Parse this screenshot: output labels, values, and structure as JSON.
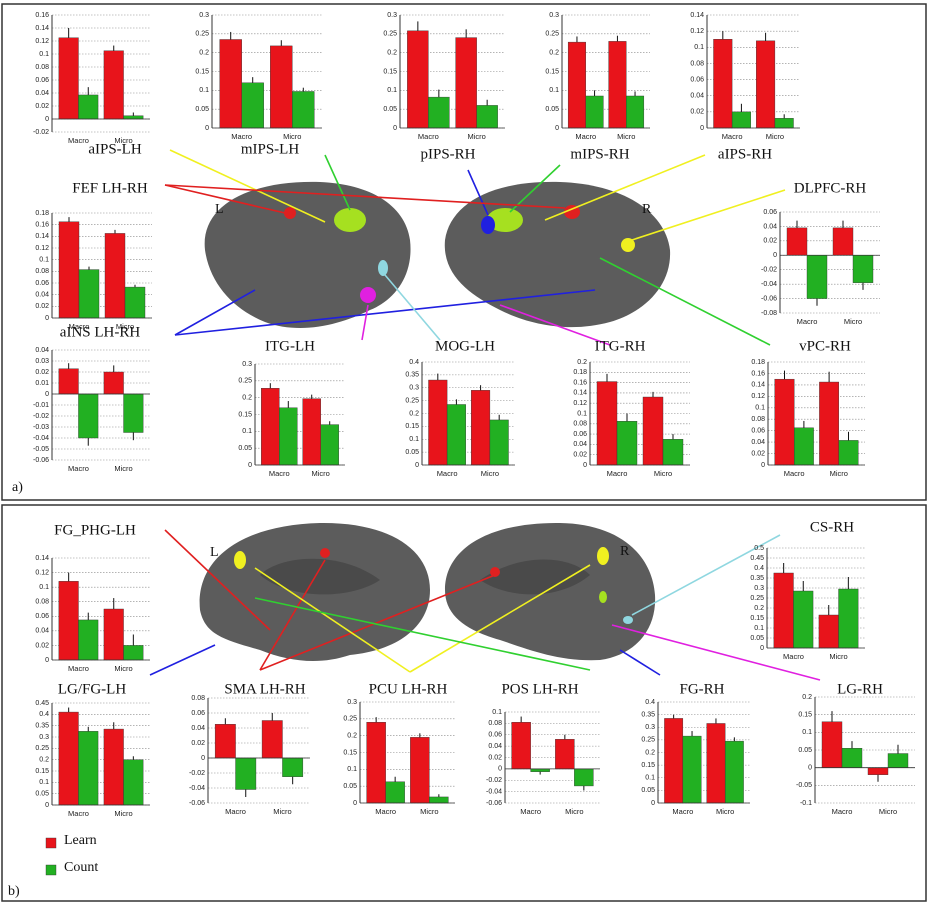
{
  "panels": {
    "a": "a)",
    "b": "b)"
  },
  "annotations": [
    "L",
    "R",
    "L",
    "R"
  ],
  "legend": [
    {
      "name": "Learn",
      "color": "#e8141b"
    },
    {
      "name": "Count",
      "color": "#22b022"
    }
  ],
  "chart_data": [
    {
      "type": "bar",
      "title": "aIPS-LH",
      "categories": [
        "Macro",
        "Micro"
      ],
      "series": [
        {
          "values": [
            0.125,
            0.105
          ],
          "errors": [
            0.015,
            0.008
          ]
        },
        {
          "values": [
            0.037,
            0.005
          ],
          "errors": [
            0.012,
            0.005
          ]
        }
      ],
      "ylim": [
        -0.02,
        0.16
      ],
      "yticks": [
        -0.02,
        0,
        0.02,
        0.04,
        0.06,
        0.08,
        0.1,
        0.12,
        0.14,
        0.16
      ],
      "grid": true
    },
    {
      "type": "bar",
      "title": "mIPS-LH",
      "categories": [
        "Macro",
        "Micro"
      ],
      "series": [
        {
          "values": [
            0.235,
            0.218
          ],
          "errors": [
            0.02,
            0.015
          ]
        },
        {
          "values": [
            0.12,
            0.097
          ],
          "errors": [
            0.015,
            0.01
          ]
        }
      ],
      "ylim": [
        0,
        0.3
      ],
      "yticks": [
        0,
        0.05,
        0.1,
        0.15,
        0.2,
        0.25,
        0.3
      ],
      "grid": true
    },
    {
      "type": "bar",
      "title": "pIPS-RH",
      "categories": [
        "Macro",
        "Micro"
      ],
      "series": [
        {
          "values": [
            0.258,
            0.24
          ],
          "errors": [
            0.025,
            0.022
          ]
        },
        {
          "values": [
            0.082,
            0.06
          ],
          "errors": [
            0.02,
            0.015
          ]
        }
      ],
      "ylim": [
        0,
        0.3
      ],
      "yticks": [
        0,
        0.05,
        0.1,
        0.15,
        0.2,
        0.25,
        0.3
      ],
      "grid": true
    },
    {
      "type": "bar",
      "title": "mIPS-RH",
      "categories": [
        "Macro",
        "Micro"
      ],
      "series": [
        {
          "values": [
            0.228,
            0.23
          ],
          "errors": [
            0.015,
            0.015
          ]
        },
        {
          "values": [
            0.085,
            0.085
          ],
          "errors": [
            0.015,
            0.012
          ]
        }
      ],
      "ylim": [
        0,
        0.3
      ],
      "yticks": [
        0,
        0.05,
        0.1,
        0.15,
        0.2,
        0.25,
        0.3
      ],
      "grid": true
    },
    {
      "type": "bar",
      "title": "aIPS-RH",
      "categories": [
        "Macro",
        "Micro"
      ],
      "series": [
        {
          "values": [
            0.11,
            0.108
          ],
          "errors": [
            0.01,
            0.01
          ]
        },
        {
          "values": [
            0.02,
            0.012
          ],
          "errors": [
            0.01,
            0.005
          ]
        }
      ],
      "ylim": [
        0,
        0.14
      ],
      "yticks": [
        0,
        0.02,
        0.04,
        0.06,
        0.08,
        0.1,
        0.12,
        0.14
      ],
      "grid": true
    },
    {
      "type": "bar",
      "title": "FEF LH-RH",
      "categories": [
        "Macro",
        "Micro"
      ],
      "series": [
        {
          "values": [
            0.165,
            0.145
          ],
          "errors": [
            0.008,
            0.006
          ]
        },
        {
          "values": [
            0.083,
            0.053
          ],
          "errors": [
            0.005,
            0.004
          ]
        }
      ],
      "ylim": [
        0,
        0.18
      ],
      "yticks": [
        0,
        0.02,
        0.04,
        0.06,
        0.08,
        0.1,
        0.12,
        0.14,
        0.16,
        0.18
      ],
      "grid": true
    },
    {
      "type": "bar",
      "title": "DLPFC-RH",
      "categories": [
        "Macro",
        "Micro"
      ],
      "series": [
        {
          "values": [
            0.038,
            0.038
          ],
          "errors": [
            0.01,
            0.01
          ]
        },
        {
          "values": [
            -0.06,
            -0.038
          ],
          "errors": [
            0.01,
            0.01
          ]
        }
      ],
      "ylim": [
        -0.08,
        0.06
      ],
      "yticks": [
        -0.08,
        -0.06,
        -0.04,
        -0.02,
        0,
        0.02,
        0.04,
        0.06
      ],
      "grid": true
    },
    {
      "type": "bar",
      "title": "aINS LH-RH",
      "categories": [
        "Macro",
        "Micro"
      ],
      "series": [
        {
          "values": [
            0.023,
            0.02
          ],
          "errors": [
            0.005,
            0.006
          ]
        },
        {
          "values": [
            -0.04,
            -0.035
          ],
          "errors": [
            0.007,
            0.007
          ]
        }
      ],
      "ylim": [
        -0.06,
        0.04
      ],
      "yticks": [
        -0.06,
        -0.05,
        -0.04,
        -0.03,
        -0.02,
        -0.01,
        0,
        0.01,
        0.02,
        0.03,
        0.04
      ],
      "grid": true
    },
    {
      "type": "bar",
      "title": "ITG-LH",
      "categories": [
        "Macro",
        "Micro"
      ],
      "series": [
        {
          "values": [
            0.228,
            0.197
          ],
          "errors": [
            0.015,
            0.012
          ]
        },
        {
          "values": [
            0.17,
            0.12
          ],
          "errors": [
            0.02,
            0.01
          ]
        }
      ],
      "ylim": [
        0,
        0.3
      ],
      "yticks": [
        0,
        0.05,
        0.1,
        0.15,
        0.2,
        0.25,
        0.3
      ],
      "grid": true
    },
    {
      "type": "bar",
      "title": "MOG-LH",
      "categories": [
        "Macro",
        "Micro"
      ],
      "series": [
        {
          "values": [
            0.33,
            0.29
          ],
          "errors": [
            0.025,
            0.02
          ]
        },
        {
          "values": [
            0.235,
            0.175
          ],
          "errors": [
            0.02,
            0.02
          ]
        }
      ],
      "ylim": [
        0,
        0.4
      ],
      "yticks": [
        0,
        0.05,
        0.1,
        0.15,
        0.2,
        0.25,
        0.3,
        0.35,
        0.4
      ],
      "grid": true
    },
    {
      "type": "bar",
      "title": "ITG-RH",
      "categories": [
        "Macro",
        "Micro"
      ],
      "series": [
        {
          "values": [
            0.162,
            0.132
          ],
          "errors": [
            0.015,
            0.01
          ]
        },
        {
          "values": [
            0.085,
            0.05
          ],
          "errors": [
            0.015,
            0.01
          ]
        }
      ],
      "ylim": [
        0,
        0.2
      ],
      "yticks": [
        0,
        0.02,
        0.04,
        0.06,
        0.08,
        0.1,
        0.12,
        0.14,
        0.16,
        0.18,
        0.2
      ],
      "grid": true
    },
    {
      "type": "bar",
      "title": "vPC-RH",
      "categories": [
        "Macro",
        "Micro"
      ],
      "series": [
        {
          "values": [
            0.15,
            0.145
          ],
          "errors": [
            0.015,
            0.018
          ]
        },
        {
          "values": [
            0.065,
            0.043
          ],
          "errors": [
            0.012,
            0.015
          ]
        }
      ],
      "ylim": [
        0,
        0.18
      ],
      "yticks": [
        0,
        0.02,
        0.04,
        0.06,
        0.08,
        0.1,
        0.12,
        0.14,
        0.16,
        0.18
      ],
      "grid": true
    },
    {
      "type": "bar",
      "title": "FG_PHG-LH",
      "categories": [
        "Macro",
        "Micro"
      ],
      "series": [
        {
          "values": [
            0.108,
            0.07
          ],
          "errors": [
            0.012,
            0.015
          ]
        },
        {
          "values": [
            0.055,
            0.02
          ],
          "errors": [
            0.01,
            0.015
          ]
        }
      ],
      "ylim": [
        0,
        0.14
      ],
      "yticks": [
        0,
        0.02,
        0.04,
        0.06,
        0.08,
        0.1,
        0.12,
        0.14
      ],
      "grid": true
    },
    {
      "type": "bar",
      "title": "CS-RH",
      "categories": [
        "Macro",
        "Micro"
      ],
      "series": [
        {
          "values": [
            0.375,
            0.165
          ],
          "errors": [
            0.05,
            0.05
          ]
        },
        {
          "values": [
            0.285,
            0.295
          ],
          "errors": [
            0.05,
            0.06
          ]
        }
      ],
      "ylim": [
        0,
        0.5
      ],
      "yticks": [
        0,
        0.05,
        0.1,
        0.15,
        0.2,
        0.25,
        0.3,
        0.35,
        0.4,
        0.45,
        0.5
      ],
      "grid": true
    },
    {
      "type": "bar",
      "title": "LG/FG-LH",
      "categories": [
        "Macro",
        "Micro"
      ],
      "series": [
        {
          "values": [
            0.41,
            0.335
          ],
          "errors": [
            0.02,
            0.03
          ]
        },
        {
          "values": [
            0.325,
            0.2
          ],
          "errors": [
            0.02,
            0.015
          ]
        }
      ],
      "ylim": [
        0,
        0.45
      ],
      "yticks": [
        0,
        0.05,
        0.1,
        0.15,
        0.2,
        0.25,
        0.3,
        0.35,
        0.4,
        0.45
      ],
      "grid": true
    },
    {
      "type": "bar",
      "title": "SMA LH-RH",
      "categories": [
        "Macro",
        "Micro"
      ],
      "series": [
        {
          "values": [
            0.045,
            0.05
          ],
          "errors": [
            0.008,
            0.01
          ]
        },
        {
          "values": [
            -0.042,
            -0.025
          ],
          "errors": [
            0.01,
            0.01
          ]
        }
      ],
      "ylim": [
        -0.06,
        0.08
      ],
      "yticks": [
        -0.06,
        -0.04,
        -0.02,
        0,
        0.02,
        0.04,
        0.06,
        0.08
      ],
      "grid": true
    },
    {
      "type": "bar",
      "title": "PCU LH-RH",
      "categories": [
        "Macro",
        "Micro"
      ],
      "series": [
        {
          "values": [
            0.24,
            0.195
          ],
          "errors": [
            0.015,
            0.012
          ]
        },
        {
          "values": [
            0.063,
            0.018
          ],
          "errors": [
            0.015,
            0.008
          ]
        }
      ],
      "ylim": [
        0,
        0.3
      ],
      "yticks": [
        0,
        0.05,
        0.1,
        0.15,
        0.2,
        0.25,
        0.3
      ],
      "grid": true
    },
    {
      "type": "bar",
      "title": "POS LH-RH",
      "categories": [
        "Macro",
        "Micro"
      ],
      "series": [
        {
          "values": [
            0.082,
            0.052
          ],
          "errors": [
            0.01,
            0.008
          ]
        },
        {
          "values": [
            -0.005,
            -0.03
          ],
          "errors": [
            0.005,
            0.008
          ]
        }
      ],
      "ylim": [
        -0.06,
        0.1
      ],
      "yticks": [
        -0.06,
        -0.04,
        -0.02,
        0,
        0.02,
        0.04,
        0.06,
        0.08,
        0.1
      ],
      "grid": true
    },
    {
      "type": "bar",
      "title": "FG-RH",
      "categories": [
        "Macro",
        "Micro"
      ],
      "series": [
        {
          "values": [
            0.335,
            0.315
          ],
          "errors": [
            0.015,
            0.02
          ]
        },
        {
          "values": [
            0.265,
            0.245
          ],
          "errors": [
            0.02,
            0.015
          ]
        }
      ],
      "ylim": [
        0,
        0.4
      ],
      "yticks": [
        0,
        0.05,
        0.1,
        0.15,
        0.2,
        0.25,
        0.3,
        0.35,
        0.4
      ],
      "grid": true
    },
    {
      "type": "bar",
      "title": "LG-RH",
      "categories": [
        "Macro",
        "Micro"
      ],
      "series": [
        {
          "values": [
            0.13,
            -0.02
          ],
          "errors": [
            0.03,
            0.02
          ]
        },
        {
          "values": [
            0.055,
            0.04
          ],
          "errors": [
            0.02,
            0.025
          ]
        }
      ],
      "ylim": [
        -0.1,
        0.2
      ],
      "yticks": [
        -0.1,
        -0.05,
        0,
        0.05,
        0.1,
        0.15,
        0.2
      ],
      "grid": true
    }
  ]
}
